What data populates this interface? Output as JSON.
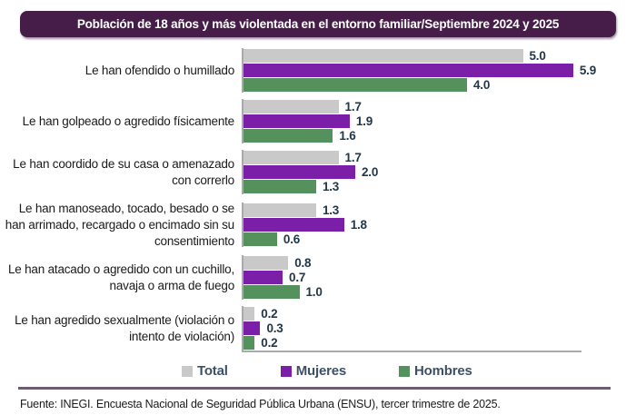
{
  "title": "Población de 18 años y más violentada en el entorno familiar/Septiembre 2024 y 2025",
  "colors": {
    "title_bg": "#461c48",
    "total": "#c9c9c9",
    "mujeres": "#7b1fa8",
    "hombres": "#55915c",
    "axis": "#a8aaad",
    "value_text": "#223749",
    "legend_text": "#3e5065",
    "divider": "#6e5a71"
  },
  "chart_data": {
    "type": "bar",
    "orientation": "horizontal",
    "categories": [
      "Le han ofendido o humillado",
      "Le han golpeado o agredido físicamente",
      "Le han coordido de su casa o amenazado con correrlo",
      "Le han manoseado, tocado, besado o se han arrimado, recargado o encimado sin su consentimiento",
      "Le han atacado o agredido con un cuchillo, navaja o arma de fuego",
      "Le han agredido sexualmente (violación o intento de violación)"
    ],
    "series": [
      {
        "name": "Total",
        "color": "#c9c9c9",
        "values": [
          5.0,
          1.7,
          1.7,
          1.3,
          0.8,
          0.2
        ]
      },
      {
        "name": "Mujeres",
        "color": "#7b1fa8",
        "values": [
          5.9,
          1.9,
          2.0,
          1.8,
          0.7,
          0.3
        ]
      },
      {
        "name": "Hombres",
        "color": "#55915c",
        "values": [
          4.0,
          1.6,
          1.3,
          0.6,
          1.0,
          0.2
        ]
      }
    ],
    "title": "Población de 18 años y más violentada en el entorno familiar/Septiembre 2024 y 2025",
    "xlabel": "",
    "ylabel": "",
    "xlim": [
      0,
      6
    ],
    "grid": false,
    "value_labels_shown": true,
    "legend_position": "bottom"
  },
  "legend": {
    "items": [
      {
        "label": "Total",
        "color": "#c9c9c9"
      },
      {
        "label": "Mujeres",
        "color": "#7b1fa8"
      },
      {
        "label": "Hombres",
        "color": "#55915c"
      }
    ]
  },
  "footer": {
    "source": "Fuente: INEGI. Encuesta Nacional de Seguridad Pública Urbana (ENSU), tercer trimestre de 2025."
  }
}
